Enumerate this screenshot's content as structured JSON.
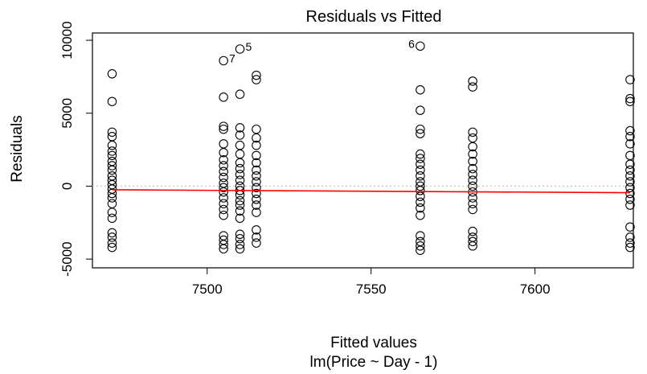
{
  "chart_data": {
    "type": "scatter",
    "title": "Residuals vs Fitted",
    "xlabel": "Fitted values",
    "subtitle": "lm(Price ~ Day - 1)",
    "ylabel": "Residuals",
    "xlim": [
      7465,
      7630
    ],
    "ylim": [
      -5600,
      10500
    ],
    "xticks": [
      7500,
      7550,
      7600
    ],
    "yticks": [
      -5000,
      0,
      5000,
      10000
    ],
    "grid": false,
    "legend": "none",
    "colors": {
      "points": "#000000",
      "smooth": "#ff0000",
      "zero_line": "#c8c8c8"
    },
    "clusters": [
      {
        "x": 7471,
        "residuals": [
          7700,
          5800,
          3700,
          3400,
          2800,
          2400,
          2100,
          1700,
          1400,
          1100,
          700,
          400,
          100,
          -200,
          -500,
          -800,
          -1200,
          -1800,
          -2200,
          -3200,
          -3500,
          -3900,
          -4200
        ]
      },
      {
        "x": 7505,
        "residuals": [
          6100,
          4100,
          3900,
          2900,
          2300,
          1800,
          1400,
          1000,
          600,
          200,
          -100,
          -400,
          -800,
          -1200,
          -1600,
          -2000,
          -3400,
          -3700,
          -4000,
          -4300
        ]
      },
      {
        "x": 7510,
        "residuals": [
          6300,
          4000,
          3500,
          2800,
          2200,
          1600,
          1200,
          800,
          400,
          0,
          -300,
          -600,
          -1000,
          -1300,
          -1700,
          -2200,
          -3300,
          -3600,
          -4000,
          -4300
        ]
      },
      {
        "x": 7515,
        "residuals": [
          7600,
          7300,
          3900,
          3300,
          2800,
          2100,
          1600,
          1100,
          700,
          300,
          -100,
          -500,
          -900,
          -1300,
          -1800,
          -3000,
          -3500,
          -3900
        ]
      },
      {
        "x": 7565,
        "residuals": [
          6600,
          5200,
          3900,
          3600,
          2200,
          1900,
          1500,
          1100,
          700,
          300,
          0,
          -300,
          -700,
          -1100,
          -1500,
          -2000,
          -3400,
          -3800,
          -4100,
          -4400
        ]
      },
      {
        "x": 7581,
        "residuals": [
          7200,
          6800,
          3700,
          3300,
          2700,
          2200,
          1700,
          1200,
          800,
          400,
          0,
          -400,
          -800,
          -1200,
          -1600,
          -3100,
          -3500,
          -3800,
          -4100
        ]
      },
      {
        "x": 7629,
        "residuals": [
          7300,
          6000,
          5800,
          3800,
          3400,
          2900,
          2100,
          1500,
          1100,
          700,
          300,
          -100,
          -500,
          -900,
          -1300,
          -2800,
          -3500,
          -3900,
          -4200
        ]
      }
    ],
    "labeled_points": [
      {
        "label": "7",
        "x": 7505,
        "y": 8600
      },
      {
        "label": "5",
        "x": 7510,
        "y": 9400
      },
      {
        "label": "6",
        "x": 7565,
        "y": 9600
      }
    ],
    "smooth_line": {
      "x": [
        7471,
        7629
      ],
      "y": [
        -250,
        -450
      ]
    }
  }
}
